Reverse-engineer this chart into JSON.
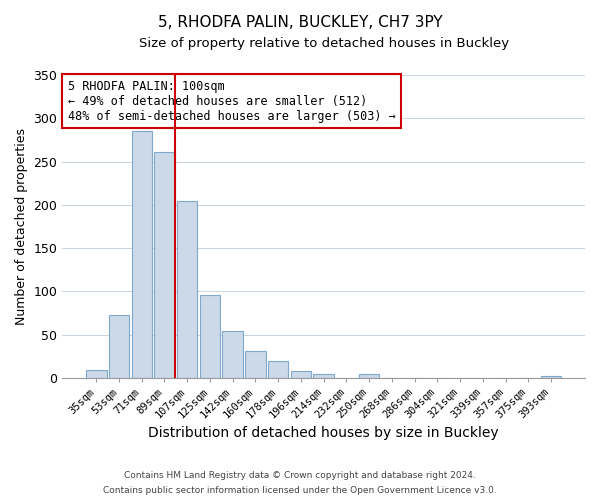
{
  "title1": "5, RHODFA PALIN, BUCKLEY, CH7 3PY",
  "title2": "Size of property relative to detached houses in Buckley",
  "xlabel": "Distribution of detached houses by size in Buckley",
  "ylabel": "Number of detached properties",
  "categories": [
    "35sqm",
    "53sqm",
    "71sqm",
    "89sqm",
    "107sqm",
    "125sqm",
    "142sqm",
    "160sqm",
    "178sqm",
    "196sqm",
    "214sqm",
    "232sqm",
    "250sqm",
    "268sqm",
    "286sqm",
    "304sqm",
    "321sqm",
    "339sqm",
    "357sqm",
    "375sqm",
    "393sqm"
  ],
  "values": [
    9,
    73,
    285,
    261,
    204,
    96,
    54,
    31,
    20,
    8,
    5,
    0,
    4,
    0,
    0,
    0,
    0,
    0,
    0,
    0,
    2
  ],
  "bar_color": "#ccd9e8",
  "bar_edge_color": "#7fa8cc",
  "highlight_line_color": "#cc0000",
  "ylim": [
    0,
    350
  ],
  "yticks": [
    0,
    50,
    100,
    150,
    200,
    250,
    300,
    350
  ],
  "annotation_title": "5 RHODFA PALIN: 100sqm",
  "annotation_line1": "← 49% of detached houses are smaller (512)",
  "annotation_line2": "48% of semi-detached houses are larger (503) →",
  "annotation_box_color": "#ffffff",
  "annotation_box_edge": "#cc0000",
  "footer1": "Contains HM Land Registry data © Crown copyright and database right 2024.",
  "footer2": "Contains public sector information licensed under the Open Government Licence v3.0."
}
